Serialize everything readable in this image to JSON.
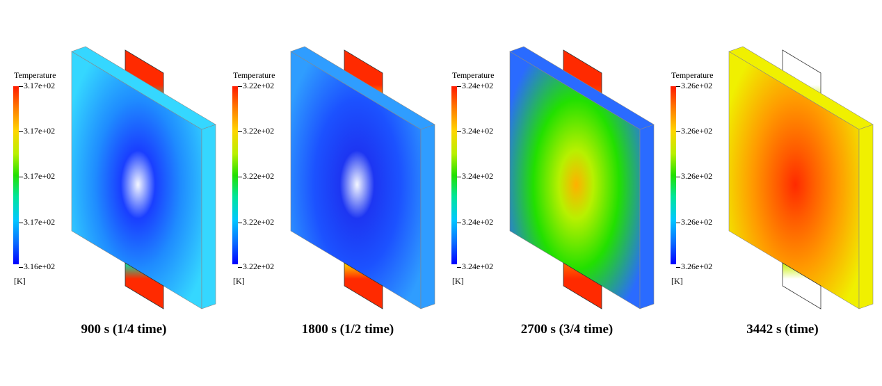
{
  "legend_title": "Temperature",
  "unit": "[K]",
  "panels": [
    {
      "caption": "900 s (1/4 time)",
      "colorbar_labels": [
        "3.17e+02",
        "3.17e+02",
        "3.17e+02",
        "3.17e+02",
        "3.16e+02"
      ],
      "field_colors": {
        "edge": "#35d7ff",
        "mid": "#1f8cff",
        "core": "#1a3fff",
        "hot": "#f4f7ff",
        "tab": "#ff2a00",
        "tab_base": "#00e4a8"
      }
    },
    {
      "caption": "1800 s (1/2 time)",
      "colorbar_labels": [
        "3.22e+02",
        "3.22e+02",
        "3.22e+02",
        "3.22e+02",
        "3.22e+02"
      ],
      "field_colors": {
        "edge": "#2f9dff",
        "mid": "#1c52ff",
        "core": "#1d36f2",
        "hot": "#f4f7ff",
        "tab": "#ff2a00",
        "tab_base": "#ffd500"
      }
    },
    {
      "caption": "2700 s (3/4 time)",
      "colorbar_labels": [
        "3.24e+02",
        "3.24e+02",
        "3.24e+02",
        "3.24e+02",
        "3.24e+02"
      ],
      "field_colors": {
        "edge": "#2a6bff",
        "mid": "#22e000",
        "core": "#b8f000",
        "hot": "#ffb000",
        "tab": "#ff2a00",
        "tab_base": "#ff6a00"
      }
    },
    {
      "caption": "3442 s (time)",
      "colorbar_labels": [
        "3.26e+02",
        "3.26e+02",
        "3.26e+02",
        "3.26e+02",
        "3.26e+02"
      ],
      "field_colors": {
        "edge": "#f0f000",
        "mid": "#ff9a00",
        "core": "#ff5a00",
        "hot": "#ff2a00",
        "tab": "#ffffff",
        "tab_base": "#c8f000"
      }
    }
  ]
}
